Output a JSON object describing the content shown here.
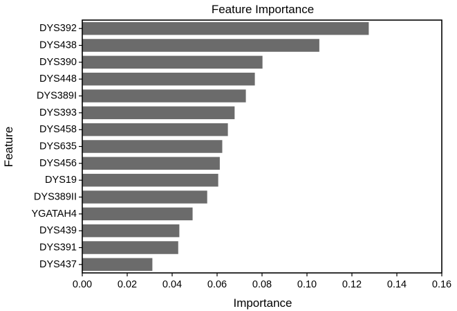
{
  "chart_data": {
    "type": "bar",
    "orientation": "horizontal",
    "title": "Feature Importance",
    "xlabel": "Importance",
    "ylabel": "Feature",
    "xlim": [
      0,
      0.16
    ],
    "xticks": [
      "0.00",
      "0.02",
      "0.04",
      "0.06",
      "0.08",
      "0.10",
      "0.12",
      "0.14",
      "0.16"
    ],
    "categories": [
      "DYS392",
      "DYS438",
      "DYS390",
      "DYS448",
      "DYS389I",
      "DYS393",
      "DYS458",
      "DYS635",
      "DYS456",
      "DYS19",
      "DYS389II",
      "YGATAH4",
      "DYS439",
      "DYS391",
      "DYS437"
    ],
    "values": [
      0.1275,
      0.1055,
      0.0802,
      0.0768,
      0.0728,
      0.0678,
      0.0648,
      0.0623,
      0.0612,
      0.0605,
      0.0556,
      0.0491,
      0.0432,
      0.0427,
      0.0312
    ],
    "bar_color": "#6b6b6b",
    "grid": false,
    "legend": "none"
  }
}
